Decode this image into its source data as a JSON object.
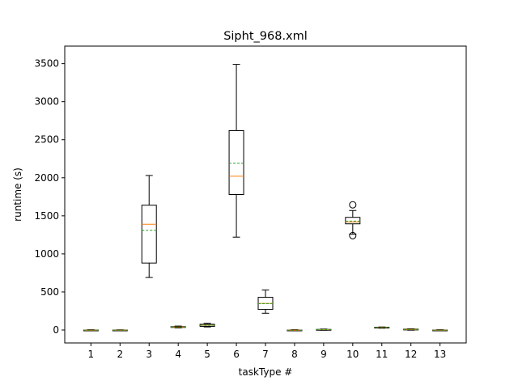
{
  "chart_data": {
    "type": "box",
    "title": "Sipht_968.xml",
    "xlabel": "taskType #",
    "ylabel": "runtime (s)",
    "ylim": [
      -170,
      3730
    ],
    "yticks": [
      0,
      500,
      1000,
      1500,
      2000,
      2500,
      3000,
      3500
    ],
    "categories": [
      "1",
      "2",
      "3",
      "4",
      "5",
      "6",
      "7",
      "8",
      "9",
      "10",
      "11",
      "12",
      "13"
    ],
    "boxes": [
      {
        "category": "1",
        "whislo": -8,
        "q1": -4,
        "median": -2,
        "mean": -2,
        "q3": 0,
        "whishi": 4,
        "fliers": []
      },
      {
        "category": "2",
        "whislo": -7,
        "q1": -4,
        "median": -2,
        "mean": -2,
        "q3": 0,
        "whishi": 3,
        "fliers": []
      },
      {
        "category": "3",
        "whislo": 690,
        "q1": 880,
        "median": 1390,
        "mean": 1310,
        "q3": 1640,
        "whishi": 2030,
        "fliers": []
      },
      {
        "category": "4",
        "whislo": 28,
        "q1": 34,
        "median": 40,
        "mean": 40,
        "q3": 45,
        "whishi": 52,
        "fliers": []
      },
      {
        "category": "5",
        "whislo": 40,
        "q1": 48,
        "median": 62,
        "mean": 62,
        "q3": 75,
        "whishi": 88,
        "fliers": []
      },
      {
        "category": "6",
        "whislo": 1220,
        "q1": 1780,
        "median": 2020,
        "mean": 2190,
        "q3": 2620,
        "whishi": 3490,
        "fliers": []
      },
      {
        "category": "7",
        "whislo": 220,
        "q1": 270,
        "median": 350,
        "mean": 345,
        "q3": 430,
        "whishi": 525,
        "fliers": []
      },
      {
        "category": "8",
        "whislo": -8,
        "q1": -4,
        "median": -2,
        "mean": -2,
        "q3": 0,
        "whishi": 4,
        "fliers": []
      },
      {
        "category": "9",
        "whislo": -2,
        "q1": 2,
        "median": 5,
        "mean": 5,
        "q3": 8,
        "whishi": 12,
        "fliers": []
      },
      {
        "category": "10",
        "whislo": 1260,
        "q1": 1395,
        "median": 1420,
        "mean": 1430,
        "q3": 1480,
        "whishi": 1570,
        "fliers": [
          1645,
          1240
        ]
      },
      {
        "category": "11",
        "whislo": 24,
        "q1": 28,
        "median": 32,
        "mean": 32,
        "q3": 36,
        "whishi": 40,
        "fliers": []
      },
      {
        "category": "12",
        "whislo": -2,
        "q1": 4,
        "median": 8,
        "mean": 8,
        "q3": 12,
        "whishi": 16,
        "fliers": []
      },
      {
        "category": "13",
        "whislo": -8,
        "q1": -4,
        "median": -2,
        "mean": -2,
        "q3": 0,
        "whishi": 4,
        "fliers": []
      }
    ],
    "colors": {
      "box": "#000000",
      "median": "#ff7f0e",
      "mean": "#2ca02c",
      "background": "#ffffff"
    },
    "grid": false,
    "legend": "none"
  }
}
